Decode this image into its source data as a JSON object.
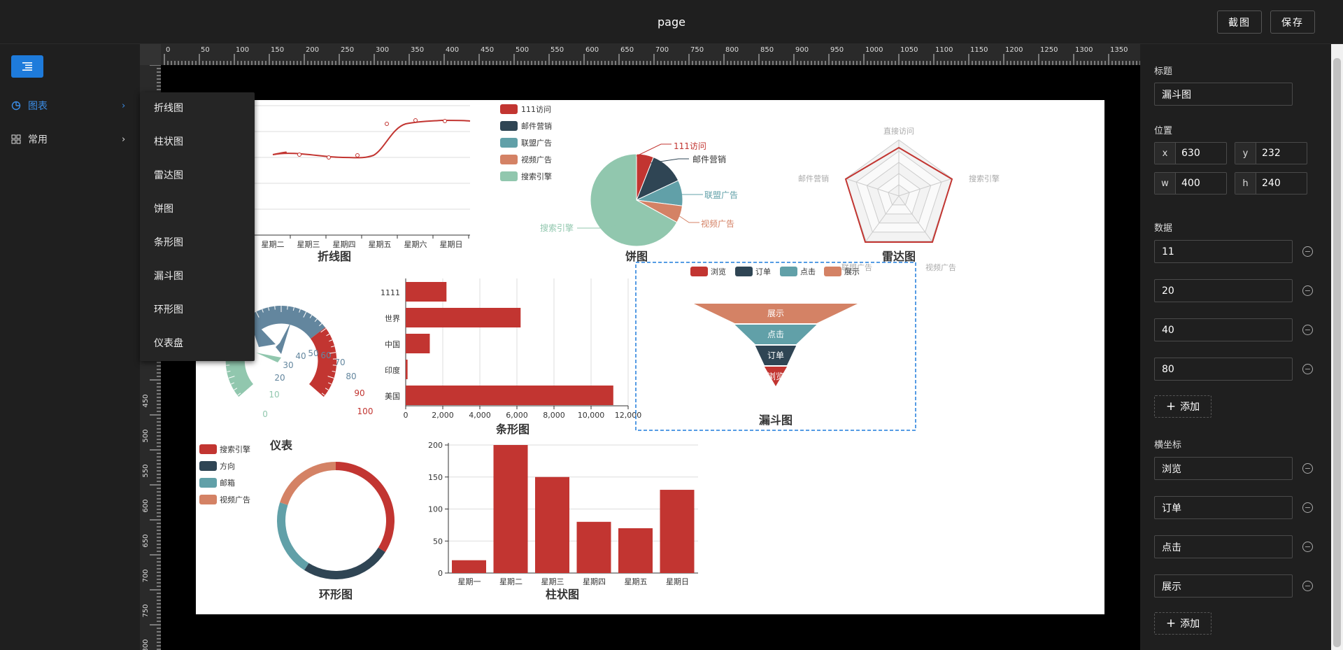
{
  "header": {
    "title": "page",
    "screenshot_label": "截图",
    "save_label": "保存"
  },
  "sidebar": {
    "items": [
      {
        "label": "图表",
        "icon": "pie-chart-icon",
        "active": true
      },
      {
        "label": "常用",
        "icon": "grid-icon",
        "active": false
      }
    ],
    "submenu": [
      "折线图",
      "柱状图",
      "雷达图",
      "饼图",
      "条形图",
      "漏斗图",
      "环形图",
      "仪表盘"
    ]
  },
  "ruler": {
    "h_ticks": [
      "0",
      "50",
      "100",
      "150",
      "200",
      "250",
      "300",
      "350",
      "400",
      "450",
      "500",
      "550",
      "600",
      "650",
      "700",
      "750",
      "800",
      "850",
      "900",
      "950",
      "1000",
      "1050",
      "1100",
      "1150",
      "1200",
      "1250",
      "1300",
      "1350"
    ],
    "v_ticks": [
      "450",
      "500",
      "550",
      "600",
      "650",
      "700",
      "750",
      "800"
    ]
  },
  "charts": {
    "line": {
      "title": "折线图",
      "x_labels": [
        "星期二",
        "星期三",
        "星期四",
        "星期五",
        "星期六",
        "星期日"
      ]
    },
    "pie": {
      "title": "饼图",
      "legend": [
        "111访问",
        "邮件营销",
        "联盟广告",
        "视频广告",
        "搜索引擎"
      ],
      "labels": [
        "111访问",
        "邮件营销",
        "联盟广告",
        "视频广告",
        "搜索引擎"
      ]
    },
    "radar": {
      "title": "雷达图",
      "indicators": [
        "直接访问",
        "搜索引擎",
        "视频广告",
        "联盟广告",
        "邮件营销"
      ]
    },
    "gauge": {
      "title": "仪表",
      "ticks": [
        "0",
        "10",
        "20",
        "30",
        "40",
        "50",
        "60",
        "70",
        "80",
        "90",
        "100"
      ]
    },
    "bar_h": {
      "title": "条形图",
      "categories": [
        "1111",
        "世界",
        "中国",
        "印度",
        "美国"
      ],
      "x_ticks": [
        "0",
        "2,000",
        "4,000",
        "6,000",
        "8,000",
        "10,000",
        "12,000"
      ]
    },
    "funnel": {
      "title": "漏斗图",
      "legend": [
        "浏览",
        "订单",
        "点击",
        "展示"
      ],
      "labels": [
        "展示",
        "点击",
        "订单",
        "浏览"
      ]
    },
    "ring": {
      "title": "环形图",
      "legend": [
        "搜索引擎",
        "方向",
        "邮箱",
        "视频广告"
      ]
    },
    "bar_v": {
      "title": "柱状图",
      "categories": [
        "星期一",
        "星期二",
        "星期三",
        "星期四",
        "星期五",
        "星期日"
      ],
      "y_ticks": [
        "0",
        "50",
        "100",
        "150",
        "200"
      ]
    }
  },
  "chart_data": [
    {
      "type": "line",
      "title": "折线图",
      "categories": [
        "星期二",
        "星期三",
        "星期四",
        "星期五",
        "星期六",
        "星期日"
      ],
      "values": [
        62,
        60,
        64,
        88,
        90,
        90
      ]
    },
    {
      "type": "pie",
      "title": "饼图",
      "categories": [
        "111访问",
        "邮件营销",
        "联盟广告",
        "视频广告",
        "搜索引擎"
      ],
      "values": [
        6,
        12,
        9,
        6,
        67
      ],
      "colors": [
        "#c23531",
        "#2f4554",
        "#61a0a8",
        "#d48265",
        "#91c7ae"
      ]
    },
    {
      "type": "bar",
      "title": "条形图",
      "categories": [
        "1111",
        "世界",
        "中国",
        "印度",
        "美国"
      ],
      "values": [
        2200,
        6200,
        1300,
        100,
        11200
      ],
      "xlim": [
        0,
        12000
      ]
    },
    {
      "type": "funnel",
      "title": "漏斗图",
      "categories": [
        "展示",
        "点击",
        "订单",
        "浏览"
      ],
      "values": [
        80,
        40,
        20,
        11
      ]
    },
    {
      "type": "pie",
      "title": "环形图",
      "categories": [
        "搜索引擎",
        "方向",
        "邮箱",
        "视频广告"
      ],
      "values": [
        34,
        25,
        21,
        20
      ]
    },
    {
      "type": "bar",
      "title": "柱状图",
      "categories": [
        "星期一",
        "星期二",
        "星期三",
        "星期四",
        "星期五",
        "星期日"
      ],
      "values": [
        20,
        200,
        150,
        80,
        70,
        130
      ],
      "ylim": [
        0,
        200
      ]
    }
  ],
  "panel": {
    "title_label": "标题",
    "title_value": "漏斗图",
    "position_label": "位置",
    "x_label": "x",
    "x_value": "630",
    "y_label": "y",
    "y_value": "232",
    "w_label": "w",
    "w_value": "400",
    "h_label": "h",
    "h_value": "240",
    "data_label": "数据",
    "data_values": [
      "11",
      "20",
      "40",
      "80"
    ],
    "add_label": "添加",
    "axis_label": "横坐标",
    "axis_values": [
      "浏览",
      "订单",
      "点击",
      "展示"
    ]
  },
  "colors": {
    "accent": "#1e7bdb",
    "red": "#c23531",
    "navy": "#2f4554",
    "teal": "#61a0a8",
    "orange": "#d48265",
    "mint": "#91c7ae"
  }
}
